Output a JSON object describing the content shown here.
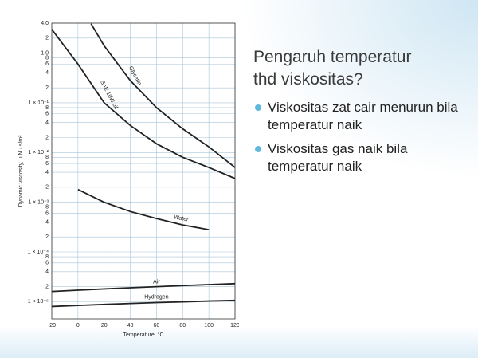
{
  "slide": {
    "title": "Pengaruh temperatur thd viskositas?",
    "bullets": [
      "Viskositas zat cair menurun bila temperatur naik",
      "Viskositas gas naik bila temperatur naik"
    ]
  },
  "chart_data": {
    "type": "line",
    "log_y": true,
    "grid": true,
    "xlabel": "Temperature, °C",
    "ylabel": "Dynamic viscosity, μ N · s/m²",
    "xlim": [
      -20,
      120
    ],
    "xticks": [
      -20,
      0,
      20,
      40,
      60,
      80,
      100,
      120
    ],
    "ylim": [
      4.5e-06,
      4
    ],
    "yticks": [
      {
        "value": 4,
        "label": "4.0"
      },
      2,
      {
        "value": 1,
        "label": "1.0"
      },
      {
        "value": 0.8,
        "label": "8"
      },
      {
        "value": 0.6,
        "label": "6"
      },
      {
        "value": 0.4,
        "label": "4"
      },
      {
        "value": 0.2,
        "label": "2"
      },
      {
        "value": 0.1,
        "label": "1 × 10⁻¹"
      },
      {
        "value": 0.08,
        "label": "8"
      },
      {
        "value": 0.06,
        "label": "6"
      },
      {
        "value": 0.04,
        "label": "4"
      },
      {
        "value": 0.02,
        "label": "2"
      },
      {
        "value": 0.01,
        "label": "1 × 10⁻²"
      },
      {
        "value": 0.008,
        "label": "8"
      },
      {
        "value": 0.006,
        "label": "6"
      },
      {
        "value": 0.004,
        "label": "4"
      },
      {
        "value": 0.002,
        "label": "2"
      },
      {
        "value": 0.001,
        "label": "1 × 10⁻³"
      },
      {
        "value": 0.0008,
        "label": "8"
      },
      {
        "value": 0.0006,
        "label": "6"
      },
      {
        "value": 0.0004,
        "label": "4"
      },
      {
        "value": 0.0002,
        "label": "2"
      },
      {
        "value": 0.0001,
        "label": "1 × 10⁻⁴"
      },
      {
        "value": 8e-05,
        "label": "8"
      },
      {
        "value": 6e-05,
        "label": "6"
      },
      {
        "value": 4e-05,
        "label": "4"
      },
      {
        "value": 2e-05,
        "label": "2"
      },
      {
        "value": 1e-05,
        "label": "1 × 10⁻⁵"
      }
    ],
    "series": [
      {
        "name": "Glycerin",
        "color": "#222222",
        "x": [
          10,
          20,
          40,
          60,
          80,
          100,
          120
        ],
        "values": [
          3.9,
          1.4,
          0.28,
          0.08,
          0.03,
          0.013,
          0.005
        ]
      },
      {
        "name": "SAE 10W oil",
        "color": "#222222",
        "x": [
          -20,
          0,
          20,
          40,
          60,
          80,
          100,
          120
        ],
        "values": [
          3,
          0.6,
          0.1,
          0.035,
          0.015,
          0.008,
          0.005,
          0.003
        ]
      },
      {
        "name": "Water",
        "color": "#222222",
        "x": [
          0,
          20,
          40,
          60,
          80,
          100
        ],
        "values": [
          0.0018,
          0.001,
          0.00065,
          0.00047,
          0.00035,
          0.00028
        ]
      },
      {
        "name": "Air",
        "color": "#222222",
        "x": [
          -20,
          0,
          20,
          40,
          60,
          80,
          100,
          120
        ],
        "values": [
          1.6e-05,
          1.7e-05,
          1.8e-05,
          1.9e-05,
          2e-05,
          2.1e-05,
          2.2e-05,
          2.3e-05
        ]
      },
      {
        "name": "Hydrogen",
        "color": "#222222",
        "x": [
          -20,
          0,
          20,
          40,
          60,
          80,
          100,
          120
        ],
        "values": [
          8e-06,
          8.4e-06,
          8.8e-06,
          9.2e-06,
          9.6e-06,
          9.9e-06,
          1.03e-05,
          1.06e-05
        ]
      }
    ]
  }
}
